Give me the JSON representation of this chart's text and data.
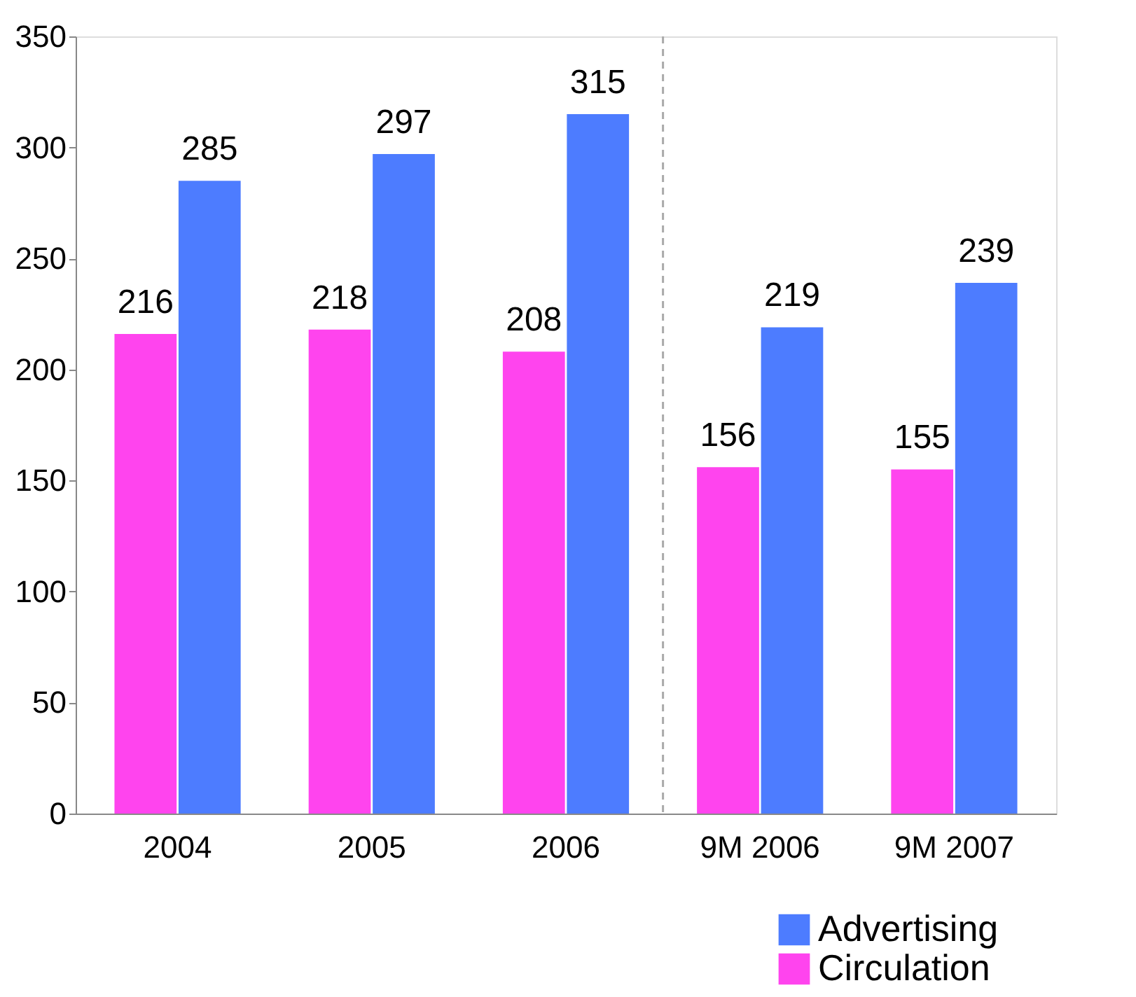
{
  "chart_data": {
    "type": "bar",
    "categories": [
      "2004",
      "2005",
      "2006",
      "9M 2006",
      "9M 2007"
    ],
    "series": [
      {
        "name": "Circulation",
        "color": "#ff44ee",
        "values": [
          216,
          218,
          208,
          156,
          155
        ]
      },
      {
        "name": "Advertising",
        "color": "#4d7cff",
        "values": [
          285,
          297,
          315,
          219,
          239
        ]
      }
    ],
    "ylim": [
      0,
      350
    ],
    "yticks": [
      0,
      50,
      100,
      150,
      200,
      250,
      300,
      350
    ],
    "grid": false,
    "data_labels": true,
    "legend": "bottom right"
  }
}
